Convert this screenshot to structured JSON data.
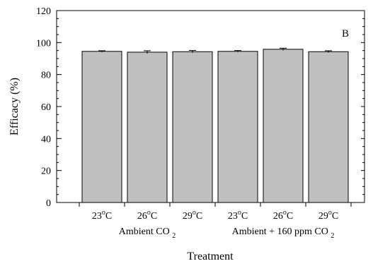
{
  "chart_data": {
    "type": "bar",
    "title": "",
    "panel_label": "B",
    "ylabel": "Efficacy (%)",
    "xlabel": "Treatment",
    "ylim": [
      0,
      120
    ],
    "yticks": [
      0,
      20,
      40,
      60,
      80,
      100,
      120
    ],
    "grid": false,
    "categories": [
      "23°C",
      "26°C",
      "29°C",
      "23°C",
      "26°C",
      "29°C"
    ],
    "temp_numbers": [
      "23",
      "26",
      "29",
      "23",
      "26",
      "29"
    ],
    "temp_degree": "o",
    "temp_unit": "C",
    "values": [
      94.5,
      94.0,
      94.3,
      94.5,
      95.8,
      94.3
    ],
    "errors": [
      0.4,
      0.9,
      0.8,
      0.5,
      0.7,
      0.6
    ],
    "groups": [
      {
        "label": "Ambient CO",
        "subscript": "2",
        "span": [
          0,
          2
        ]
      },
      {
        "label": "Ambient + 160 ppm CO",
        "subscript": "2",
        "span": [
          3,
          5
        ]
      }
    ],
    "bar_color": "#c0c0c0",
    "edge_color": "#000000"
  }
}
